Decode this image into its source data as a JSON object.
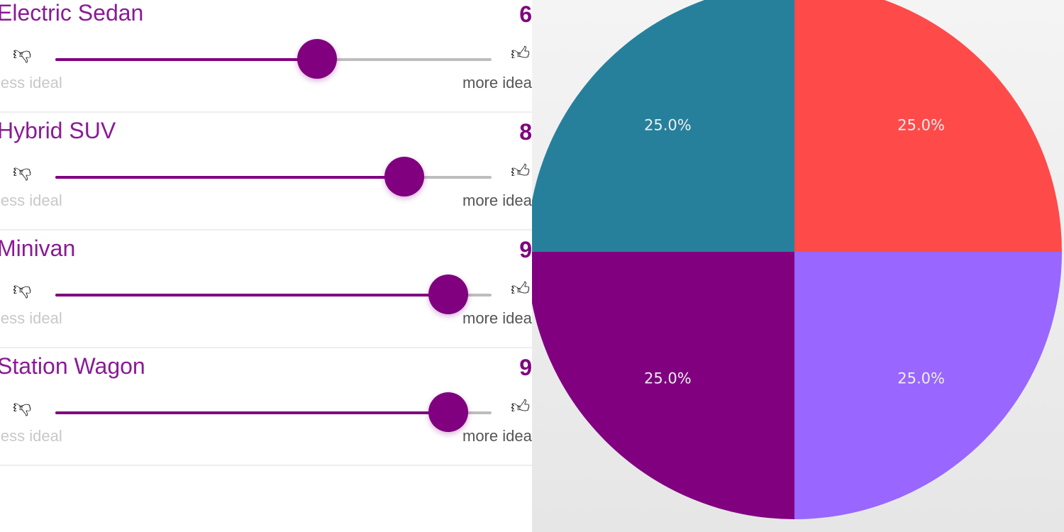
{
  "scale": {
    "min": 0,
    "max": 10,
    "less_label": "less ideal",
    "more_label": "more ideal"
  },
  "items": [
    {
      "name": "Electric Sedan",
      "value": "6",
      "rating": 6
    },
    {
      "name": "Hybrid SUV",
      "value": "8",
      "rating": 8
    },
    {
      "name": "Minivan",
      "value": "9",
      "rating": 9
    },
    {
      "name": "Station Wagon",
      "value": "9",
      "rating": 9
    }
  ],
  "chart_data": {
    "type": "pie",
    "slices": [
      {
        "label": "25.0%",
        "value": 25.0,
        "color": "#ff4a4a"
      },
      {
        "label": "25.0%",
        "value": 25.0,
        "color": "#9966ff"
      },
      {
        "label": "25.0%",
        "value": 25.0,
        "color": "#800080"
      },
      {
        "label": "25.0%",
        "value": 25.0,
        "color": "#26809c"
      }
    ]
  }
}
